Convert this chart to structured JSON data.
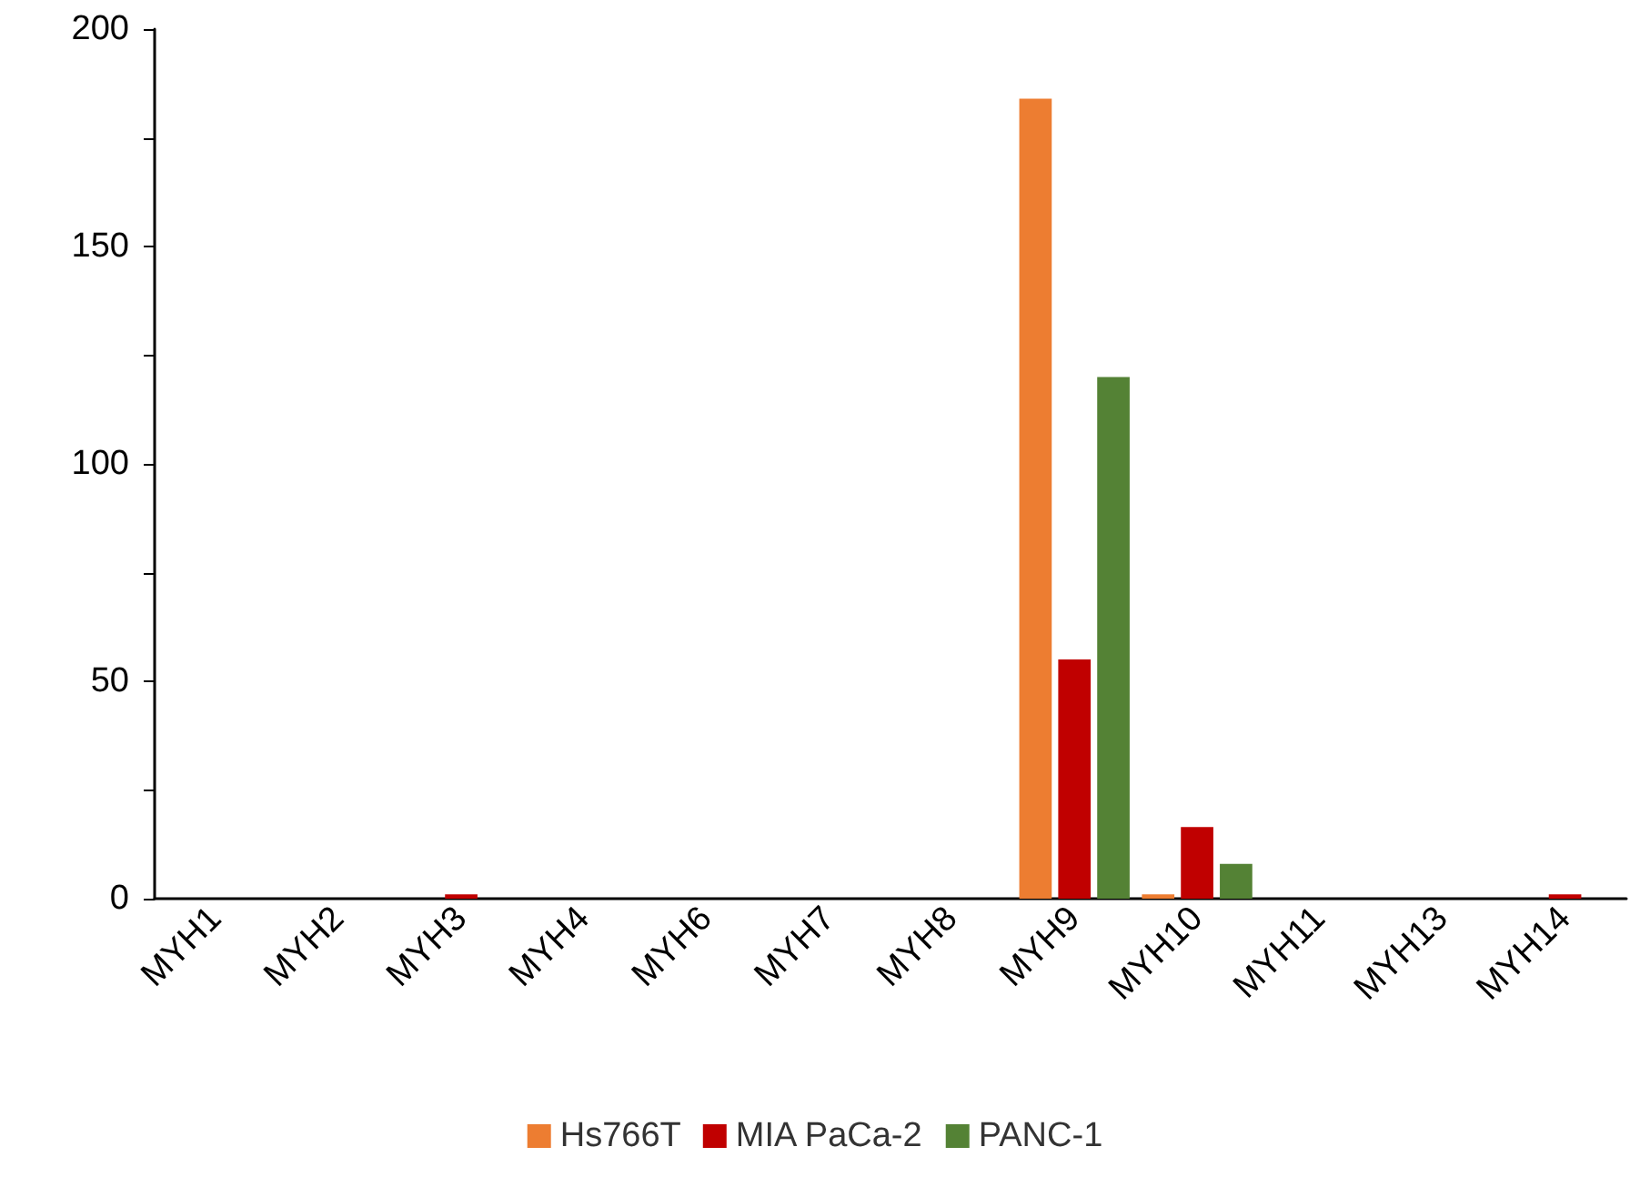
{
  "chart_data": {
    "type": "bar",
    "categories": [
      "MYH1",
      "MYH2",
      "MYH3",
      "MYH4",
      "MYH6",
      "MYH7",
      "MYH8",
      "MYH9",
      "MYH10",
      "MYH11",
      "MYH13",
      "MYH14"
    ],
    "series": [
      {
        "name": "Hs766T",
        "color": "#ed7d31",
        "values": [
          0,
          0,
          0,
          0,
          0,
          0,
          0,
          184,
          1,
          0,
          0,
          0
        ]
      },
      {
        "name": "MIA PaCa-2",
        "color": "#c00000",
        "values": [
          0,
          0,
          1,
          0,
          0,
          0,
          0,
          55,
          16.5,
          0,
          0,
          1
        ]
      },
      {
        "name": "PANC-1",
        "color": "#548235",
        "values": [
          0,
          0,
          0,
          0,
          0,
          0,
          0,
          120,
          8,
          0,
          0,
          0
        ]
      }
    ],
    "ylim": [
      0,
      200
    ],
    "yticks": [
      0,
      {
        "value": 25,
        "label": null
      },
      50,
      {
        "value": 75,
        "label": null
      },
      100,
      {
        "value": 125,
        "label": null
      },
      150,
      {
        "value": 175,
        "label": null
      },
      200
    ],
    "grid": false,
    "legend": "bottom"
  }
}
